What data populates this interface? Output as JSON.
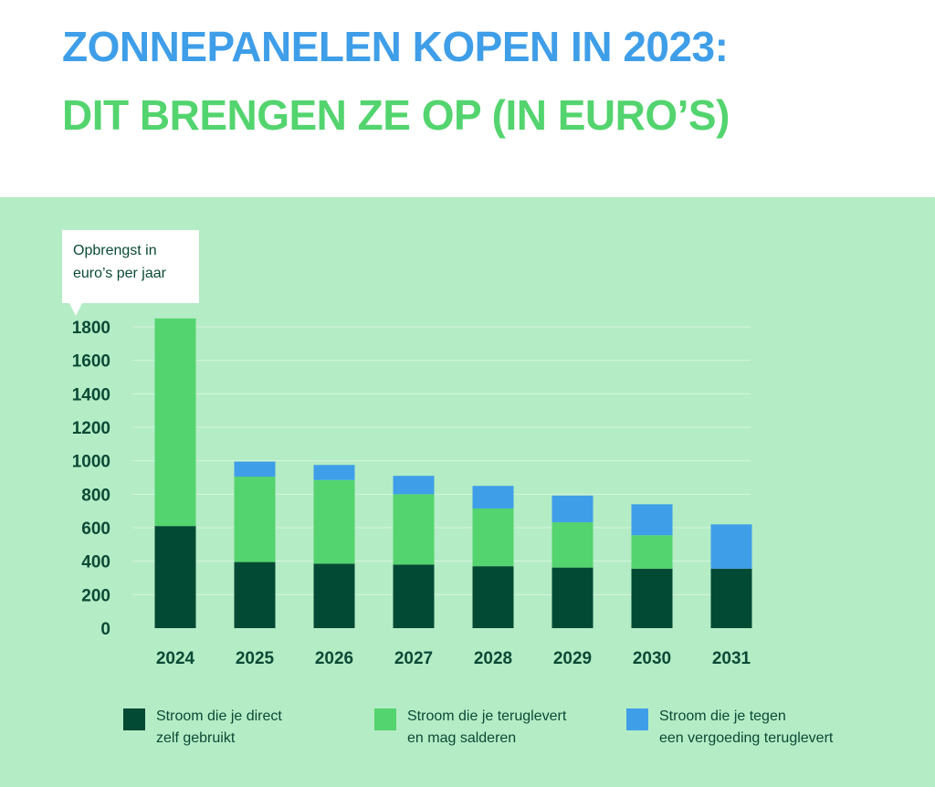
{
  "header": {
    "title_line1": "ZONNEPANELEN KOPEN IN 2023:",
    "title_line2": "DIT BRENGEN ZE OP (IN EURO’S)"
  },
  "chart_data": {
    "type": "bar",
    "stacked": true,
    "ylabel": "Opbrengst in\neuro’s per jaar",
    "xlabel": "",
    "ylim": [
      0,
      1800
    ],
    "yticks": [
      0,
      200,
      400,
      600,
      800,
      1000,
      1200,
      1400,
      1600,
      1800
    ],
    "grid": true,
    "legend_position": "bottom",
    "categories": [
      "2024",
      "2025",
      "2026",
      "2027",
      "2028",
      "2029",
      "2030",
      "2031"
    ],
    "series": [
      {
        "name": "Stroom die je direct\nzelf gebruikt",
        "color": "#034a35",
        "values": [
          610,
          395,
          385,
          380,
          370,
          362,
          355,
          355
        ]
      },
      {
        "name": "Stroom die je teruglevert\nen mag salderen",
        "color": "#53d46e",
        "values": [
          1240,
          510,
          500,
          420,
          345,
          270,
          200,
          0
        ]
      },
      {
        "name": "Stroom die je tegen\neen vergoeding teruglevert",
        "color": "#3f9ee8",
        "values": [
          0,
          90,
          90,
          110,
          135,
          160,
          185,
          265
        ]
      }
    ]
  },
  "colors": {
    "title_blue": "#3f9ee8",
    "title_green": "#53d46e",
    "panel_background": "#b4ecc5",
    "text_dark_green": "#0b4a36"
  }
}
